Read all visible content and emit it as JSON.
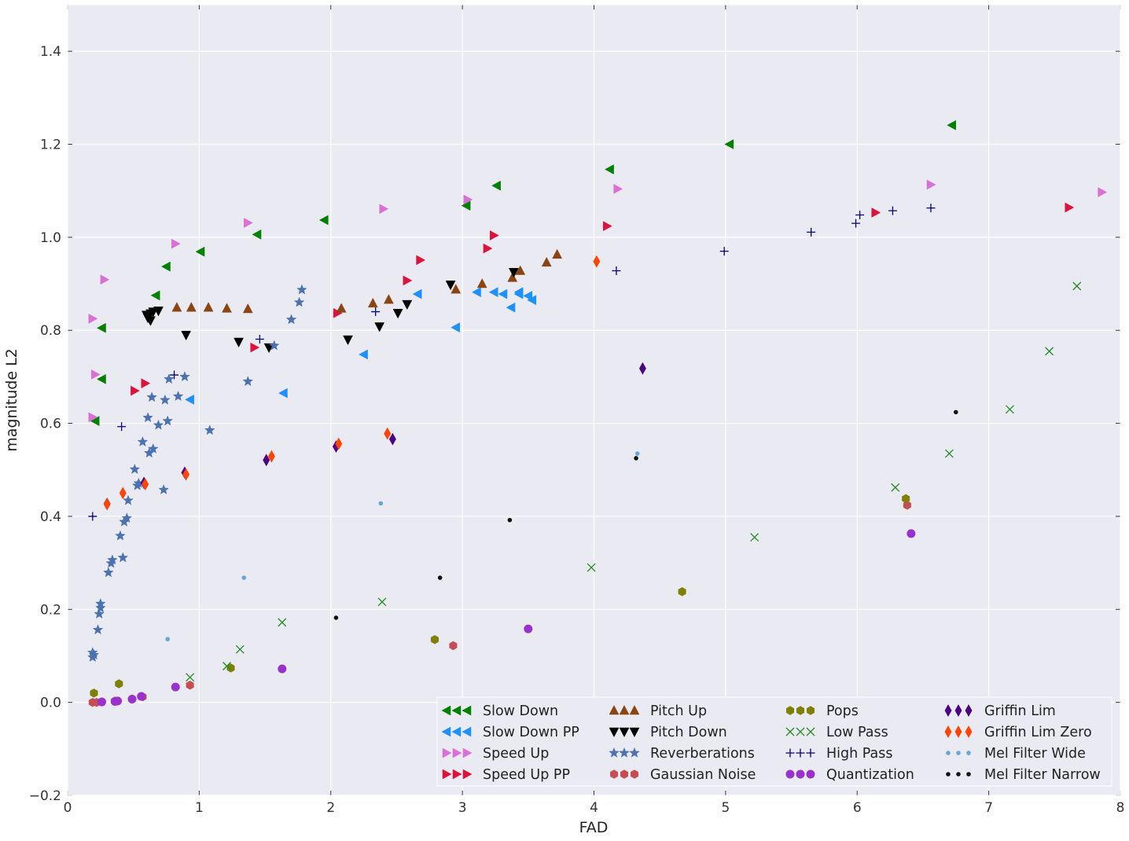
{
  "chart_data": {
    "type": "scatter",
    "title": "",
    "xlabel": "FAD",
    "ylabel": "magnitude L2",
    "xlim": [
      0,
      8
    ],
    "ylim": [
      -0.2,
      1.5
    ],
    "xticks": [
      0,
      1,
      2,
      3,
      4,
      5,
      6,
      7,
      8
    ],
    "yticks": [
      -0.2,
      0.0,
      0.2,
      0.4,
      0.6,
      0.8,
      1.0,
      1.2,
      1.4
    ],
    "xtick_labels": [
      "0",
      "1",
      "2",
      "3",
      "4",
      "5",
      "6",
      "7",
      "8"
    ],
    "ytick_labels": [
      "−0.2",
      "0.0",
      "0.2",
      "0.4",
      "0.6",
      "0.8",
      "1.0",
      "1.2",
      "1.4"
    ],
    "grid": true,
    "legend_position": "lower-right",
    "background": "#eaeaf2",
    "series": [
      {
        "name": "Slow Down",
        "marker": "triangle-left",
        "color": "#008000",
        "x": [
          0.21,
          0.26,
          0.26,
          0.67,
          0.75,
          1.01,
          1.44,
          1.95,
          3.03,
          3.26,
          4.12,
          5.03,
          6.72
        ],
        "y": [
          0.605,
          0.695,
          0.805,
          0.875,
          0.937,
          0.969,
          1.006,
          1.037,
          1.068,
          1.111,
          1.146,
          1.2,
          1.241
        ]
      },
      {
        "name": "Slow Down PP",
        "marker": "triangle-left",
        "color": "#1e90ff",
        "x": [
          0.93,
          1.64,
          2.25,
          2.66,
          2.95,
          3.11,
          3.24,
          3.31,
          3.37,
          3.43,
          3.43,
          3.5,
          3.53
        ],
        "y": [
          0.651,
          0.665,
          0.748,
          0.878,
          0.806,
          0.882,
          0.882,
          0.878,
          0.849,
          0.882,
          0.878,
          0.874,
          0.865
        ]
      },
      {
        "name": "Speed Up",
        "marker": "triangle-right",
        "color": "#da70d6",
        "x": [
          0.19,
          0.19,
          0.21,
          0.28,
          0.82,
          1.37,
          2.4,
          3.04,
          4.18,
          6.56,
          7.86
        ],
        "y": [
          0.613,
          0.825,
          0.705,
          0.909,
          0.986,
          1.031,
          1.061,
          1.081,
          1.104,
          1.113,
          1.097
        ]
      },
      {
        "name": "Speed Up PP",
        "marker": "triangle-right",
        "color": "#dc143c",
        "x": [
          0.51,
          0.59,
          1.42,
          2.05,
          2.58,
          2.68,
          3.19,
          3.24,
          4.1,
          6.14,
          7.61
        ],
        "y": [
          0.67,
          0.686,
          0.763,
          0.837,
          0.907,
          0.951,
          0.976,
          1.004,
          1.024,
          1.053,
          1.064
        ]
      },
      {
        "name": "Pitch Up",
        "marker": "triangle-up",
        "color": "#8b4513",
        "x": [
          0.83,
          0.94,
          1.07,
          1.21,
          1.37,
          2.08,
          2.32,
          2.44,
          2.95,
          3.15,
          3.38,
          3.44,
          3.64,
          3.72
        ],
        "y": [
          0.849,
          0.849,
          0.849,
          0.847,
          0.846,
          0.847,
          0.858,
          0.866,
          0.888,
          0.9,
          0.913,
          0.928,
          0.946,
          0.963
        ]
      },
      {
        "name": "Pitch Down",
        "marker": "triangle-down",
        "color": "#000000",
        "x": [
          0.6,
          0.61,
          0.63,
          0.63,
          0.65,
          0.69,
          0.9,
          1.3,
          1.53,
          2.13,
          2.37,
          2.51,
          2.58,
          2.91,
          3.39
        ],
        "y": [
          0.833,
          0.827,
          0.821,
          0.836,
          0.84,
          0.842,
          0.79,
          0.775,
          0.763,
          0.78,
          0.808,
          0.837,
          0.856,
          0.898,
          0.925
        ]
      },
      {
        "name": "Reverberations",
        "marker": "star",
        "color": "#4c72b0",
        "x": [
          0.19,
          0.19,
          0.2,
          0.23,
          0.24,
          0.25,
          0.25,
          0.31,
          0.33,
          0.34,
          0.4,
          0.42,
          0.43,
          0.45,
          0.46,
          0.51,
          0.53,
          0.54,
          0.57,
          0.61,
          0.62,
          0.64,
          0.65,
          0.69,
          0.73,
          0.74,
          0.76,
          0.77,
          0.84,
          0.89,
          1.08,
          1.37,
          1.57,
          1.7,
          1.76,
          1.78
        ],
        "y": [
          0.097,
          0.107,
          0.102,
          0.156,
          0.19,
          0.203,
          0.212,
          0.279,
          0.299,
          0.306,
          0.358,
          0.311,
          0.388,
          0.396,
          0.434,
          0.501,
          0.466,
          0.471,
          0.56,
          0.612,
          0.536,
          0.656,
          0.545,
          0.596,
          0.457,
          0.65,
          0.605,
          0.695,
          0.658,
          0.7,
          0.585,
          0.69,
          0.767,
          0.823,
          0.86,
          0.887
        ]
      },
      {
        "name": "Gaussian Noise",
        "marker": "hexagon",
        "color": "#c44e52",
        "x": [
          0.19,
          0.22,
          0.36,
          0.57,
          0.93,
          2.93,
          6.38
        ],
        "y": [
          0.0,
          0.0,
          0.003,
          0.012,
          0.037,
          0.122,
          0.424
        ]
      },
      {
        "name": "Pops",
        "marker": "hexagon",
        "color": "#808000",
        "x": [
          0.2,
          0.39,
          1.24,
          2.79,
          4.67,
          6.37
        ],
        "y": [
          0.02,
          0.04,
          0.074,
          0.135,
          0.238,
          0.438
        ]
      },
      {
        "name": "Low Pass",
        "marker": "x",
        "color": "#228b22",
        "x": [
          0.93,
          1.21,
          1.31,
          1.63,
          2.39,
          3.98,
          5.22,
          6.29,
          6.7,
          7.16,
          7.46,
          7.67
        ],
        "y": [
          0.054,
          0.078,
          0.114,
          0.172,
          0.216,
          0.29,
          0.355,
          0.462,
          0.535,
          0.63,
          0.755,
          0.895
        ]
      },
      {
        "name": "High Pass",
        "marker": "plus",
        "color": "#000080",
        "x": [
          0.19,
          0.41,
          0.81,
          1.46,
          2.34,
          4.17,
          4.99,
          5.65,
          5.99,
          6.02,
          6.27,
          6.56
        ],
        "y": [
          0.4,
          0.593,
          0.704,
          0.781,
          0.84,
          0.928,
          0.97,
          1.011,
          1.03,
          1.048,
          1.057,
          1.063
        ]
      },
      {
        "name": "Quantization",
        "marker": "circle",
        "color": "#9932cc",
        "x": [
          0.26,
          0.36,
          0.38,
          0.49,
          0.56,
          0.82,
          1.63,
          3.5,
          6.41
        ],
        "y": [
          0.001,
          0.002,
          0.003,
          0.007,
          0.013,
          0.033,
          0.072,
          0.158,
          0.363
        ]
      },
      {
        "name": "Griffin Lim",
        "marker": "thin-diamond",
        "color": "#4b0082",
        "x": [
          0.3,
          0.58,
          0.89,
          1.51,
          2.04,
          2.47,
          4.37
        ],
        "y": [
          0.427,
          0.472,
          0.494,
          0.521,
          0.55,
          0.566,
          0.718
        ]
      },
      {
        "name": "Griffin Lim Zero",
        "marker": "thin-diamond",
        "color": "#ff4500",
        "x": [
          0.3,
          0.42,
          0.59,
          0.9,
          1.55,
          2.06,
          2.43,
          4.02
        ],
        "y": [
          0.426,
          0.45,
          0.469,
          0.49,
          0.529,
          0.556,
          0.578,
          0.948
        ]
      },
      {
        "name": "Mel Filter Wide",
        "marker": "small-dot",
        "color": "#5fa9d6",
        "x": [
          0.76,
          1.34,
          2.38,
          4.33
        ],
        "y": [
          0.136,
          0.268,
          0.428,
          0.535
        ]
      },
      {
        "name": "Mel Filter Narrow",
        "marker": "small-dot",
        "color": "#111111",
        "x": [
          2.04,
          2.83,
          3.36,
          4.32,
          6.75
        ],
        "y": [
          0.182,
          0.268,
          0.392,
          0.525,
          0.624
        ]
      }
    ]
  }
}
